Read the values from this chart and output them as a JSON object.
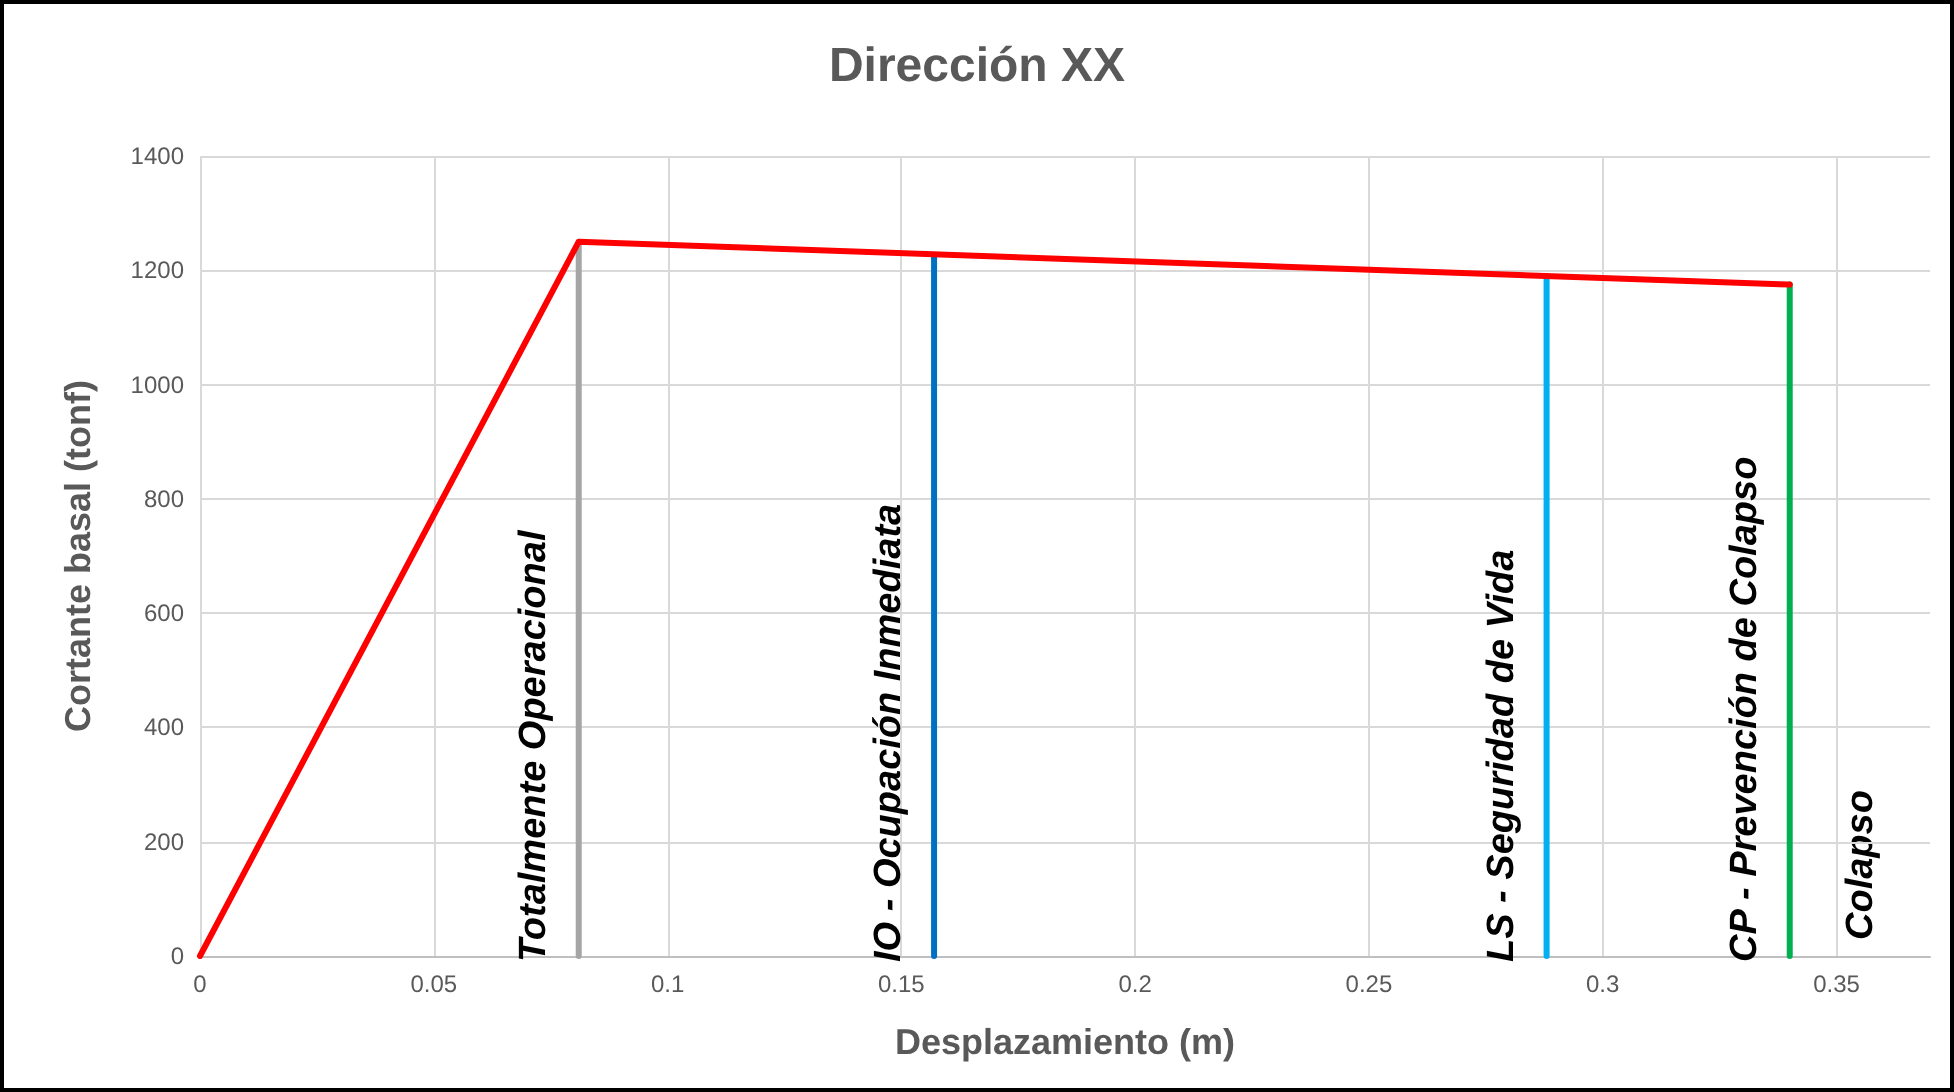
{
  "chart_data": {
    "type": "line",
    "title": "Dirección XX",
    "xlabel": "Desplazamiento (m)",
    "ylabel": "Cortante basal (tonf)",
    "series": [
      {
        "color": "#ff0000",
        "x": [
          0,
          0.081,
          0.34
        ],
        "values": [
          0,
          1250,
          1175
        ]
      },
      {
        "name": "Totalmente Operacional",
        "color": "#a5a5a5",
        "x": [
          0.081,
          0.081
        ],
        "values": [
          0,
          1250
        ]
      },
      {
        "name": "IO - Ocupación Inmediata",
        "color": "#0070c0",
        "x": [
          0.157,
          0.157
        ],
        "values": [
          0,
          1227
        ]
      },
      {
        "name": "LS - Seguridad de Vida",
        "color": "#00b0f0",
        "x": [
          0.288,
          0.288
        ],
        "values": [
          0,
          1189
        ]
      },
      {
        "name": "CP - Prevención de Colapso",
        "color": "#00b050",
        "x": [
          0.34,
          0.34
        ],
        "values": [
          0,
          1175
        ]
      }
    ],
    "annotations": [
      "Colapso"
    ],
    "xlim": [
      0,
      0.37
    ],
    "xticks": [
      0,
      0.05,
      0.1,
      0.15,
      0.2,
      0.25,
      0.3,
      0.35
    ],
    "ylim": [
      0,
      1400
    ],
    "yticks": [
      0,
      200,
      400,
      600,
      800,
      1000,
      1200,
      1400
    ],
    "grid": true,
    "legend": false,
    "marker": "none",
    "line_style": "solid"
  }
}
